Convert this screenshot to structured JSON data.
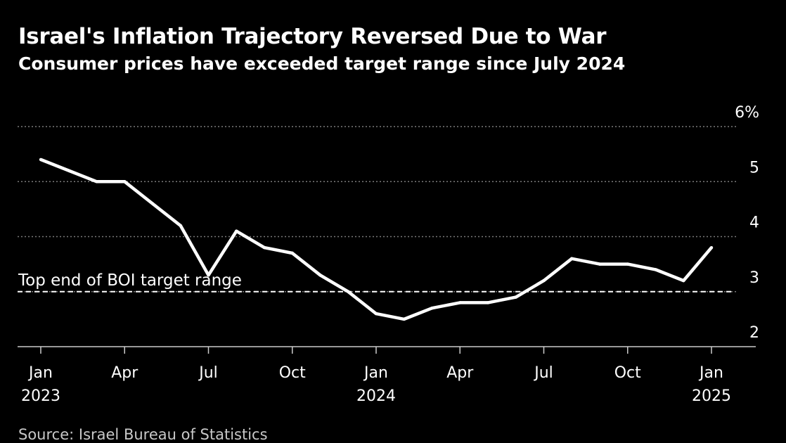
{
  "title": "Israel's Inflation Trajectory Reversed Due to War",
  "subtitle": "Consumer prices have exceeded target range since July 2024",
  "source": "Source: Israel Bureau of Statistics",
  "colors": {
    "background": "#000000",
    "line": "#ffffff",
    "grid": "#7a7a7a",
    "text": "#ffffff"
  },
  "chart_data": {
    "type": "line",
    "title": "Israel's Inflation Trajectory Reversed Due to War",
    "subtitle": "Consumer prices have exceeded target range since July 2024",
    "xlabel": "",
    "ylabel": "",
    "y_unit": "%",
    "ylim": [
      2,
      6
    ],
    "y_ticks": [
      2,
      3,
      4,
      5,
      6
    ],
    "y_tick_labels": [
      "2",
      "3",
      "4",
      "5",
      "6%"
    ],
    "grid": "horizontal dotted",
    "x_ticks": [
      {
        "date": "2023-01",
        "label": "Jan",
        "year": "2023"
      },
      {
        "date": "2023-04",
        "label": "Apr",
        "year": ""
      },
      {
        "date": "2023-07",
        "label": "Jul",
        "year": ""
      },
      {
        "date": "2023-10",
        "label": "Oct",
        "year": ""
      },
      {
        "date": "2024-01",
        "label": "Jan",
        "year": "2024"
      },
      {
        "date": "2024-04",
        "label": "Apr",
        "year": ""
      },
      {
        "date": "2024-07",
        "label": "Jul",
        "year": ""
      },
      {
        "date": "2024-10",
        "label": "Oct",
        "year": ""
      },
      {
        "date": "2025-01",
        "label": "Jan",
        "year": "2025"
      }
    ],
    "series": [
      {
        "name": "",
        "x": [
          "2023-01",
          "2023-02",
          "2023-03",
          "2023-04",
          "2023-05",
          "2023-06",
          "2023-07",
          "2023-08",
          "2023-09",
          "2023-10",
          "2023-11",
          "2023-12",
          "2024-01",
          "2024-02",
          "2024-03",
          "2024-04",
          "2024-05",
          "2024-06",
          "2024-07",
          "2024-08",
          "2024-09",
          "2024-10",
          "2024-11",
          "2024-12",
          "2025-01"
        ],
        "values": [
          5.4,
          5.2,
          5.0,
          5.0,
          4.6,
          4.2,
          3.3,
          4.1,
          3.8,
          3.7,
          3.3,
          3.0,
          2.6,
          2.5,
          2.7,
          2.8,
          2.8,
          2.9,
          3.2,
          3.6,
          3.5,
          3.5,
          3.4,
          3.2,
          3.8
        ]
      }
    ],
    "reference_lines": [
      {
        "value": 3,
        "label": "Top end of BOI target range",
        "style": "dashed"
      }
    ]
  }
}
